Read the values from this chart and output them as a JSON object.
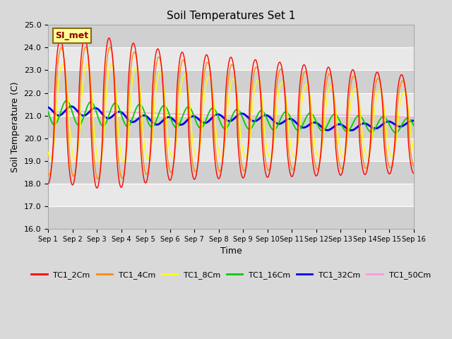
{
  "title": "Soil Temperatures Set 1",
  "xlabel": "Time",
  "ylabel": "Soil Temperature (C)",
  "ylim": [
    16.0,
    25.0
  ],
  "yticks": [
    16.0,
    17.0,
    18.0,
    19.0,
    20.0,
    21.0,
    22.0,
    23.0,
    24.0,
    25.0
  ],
  "days": 15,
  "xtick_labels": [
    "Sep 1",
    "Sep 2",
    "Sep 3",
    "Sep 4",
    "Sep 5",
    "Sep 6",
    "Sep 7",
    "Sep 8",
    "Sep 9",
    "Sep 10",
    "Sep 11",
    "Sep 12",
    "Sep 13",
    "Sep 14",
    "Sep 15",
    "Sep 16"
  ],
  "annotation_text": "SI_met",
  "annotation_bg": "#ffff99",
  "annotation_border": "#8b6914",
  "series_colors": [
    "#ff0000",
    "#ff8c00",
    "#ffff00",
    "#00cc00",
    "#0000ee",
    "#ff99dd"
  ],
  "series_labels": [
    "TC1_2Cm",
    "TC1_4Cm",
    "TC1_8Cm",
    "TC1_16Cm",
    "TC1_32Cm",
    "TC1_50Cm"
  ],
  "fig_bg": "#d9d9d9",
  "plot_bg": "#e8e8e8",
  "band_dark": "#d0d0d0",
  "band_light": "#e8e8e8"
}
